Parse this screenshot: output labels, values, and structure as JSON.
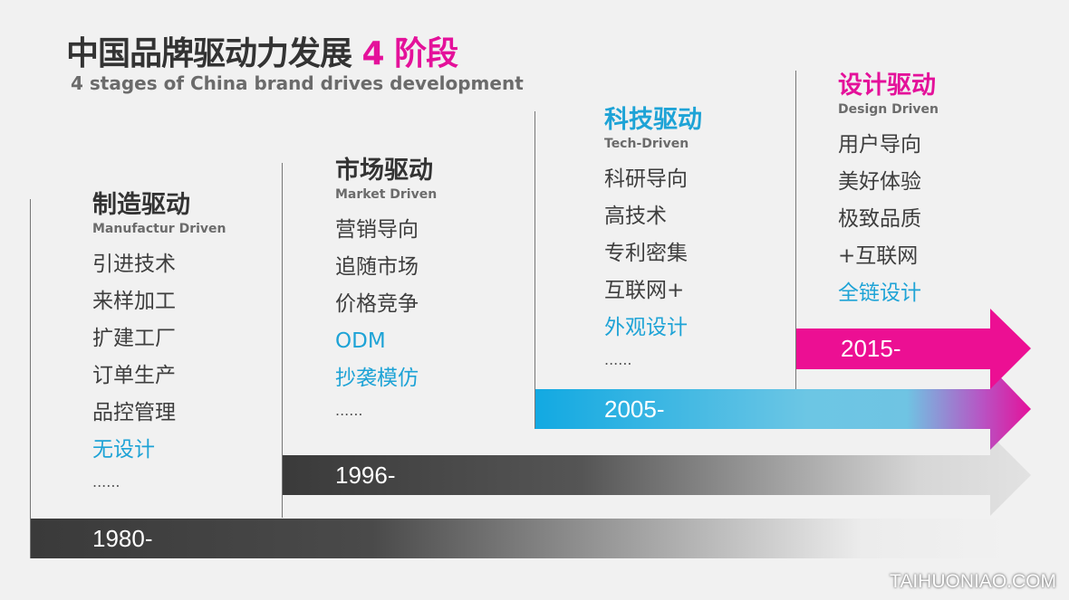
{
  "title": {
    "main": "中国品牌驱动力发展 ",
    "highlight": "4 阶段",
    "subtitle": "4 stages of China brand drives development"
  },
  "colors": {
    "magenta": "#e4119a",
    "cyan": "#1ea3d6",
    "dark": "#3a3a3a"
  },
  "stages": [
    {
      "heading": "制造驱动",
      "english": "Manufactur Driven",
      "items": [
        "引进技术",
        "来样加工",
        "扩建工厂",
        "订单生产",
        "品控管理"
      ],
      "highlight": "无设计",
      "more": "......",
      "year": "1980-"
    },
    {
      "heading": "市场驱动",
      "english": "Market Driven",
      "items": [
        "营销导向",
        "追随市场",
        "价格竞争"
      ],
      "highlight": [
        "ODM",
        "抄袭模仿"
      ],
      "more": "......",
      "year": "1996-"
    },
    {
      "heading": "科技驱动",
      "english": "Tech-Driven",
      "items": [
        "科研导向",
        "高技术",
        "专利密集",
        "互联网+"
      ],
      "highlight": "外观设计",
      "more": "......",
      "year": "2005-"
    },
    {
      "heading": "设计驱动",
      "english": "Design Driven",
      "items": [
        "用户导向",
        "美好体验",
        "极致品质",
        "+互联网"
      ],
      "highlight": "全链设计",
      "year": "2015-"
    }
  ],
  "watermark": "TAIHUONIAO.COM"
}
